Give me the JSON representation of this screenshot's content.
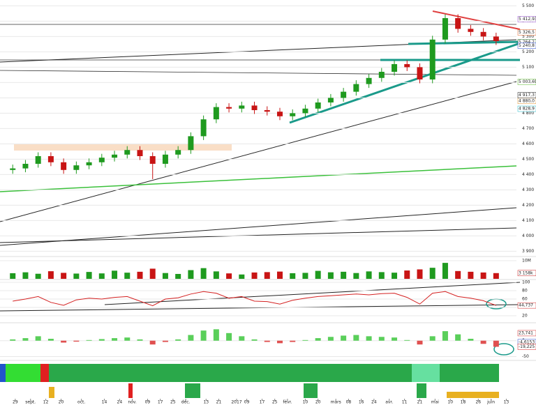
{
  "chart_data": [
    {
      "type": "candlestick",
      "up_color": "#1f9a1f",
      "down_color": "#c81414",
      "x": [
        2,
        7,
        12,
        17,
        22,
        27,
        32,
        37,
        42,
        47,
        52,
        57,
        62,
        67,
        72,
        77,
        82,
        87,
        92,
        97,
        102,
        107,
        112,
        117,
        122,
        127,
        132,
        137,
        142,
        147,
        152,
        157,
        162,
        167,
        172,
        177,
        182,
        187,
        192
      ],
      "open": [
        4430,
        4440,
        4470,
        4520,
        4480,
        4430,
        4460,
        4480,
        4510,
        4530,
        4560,
        4520,
        4470,
        4530,
        4560,
        4650,
        4760,
        4840,
        4830,
        4850,
        4820,
        4810,
        4780,
        4800,
        4830,
        4870,
        4900,
        4940,
        4990,
        5030,
        5070,
        5120,
        5100,
        5020,
        5280,
        5420,
        5350,
        5330,
        5300
      ],
      "high": [
        4465,
        4495,
        4545,
        4545,
        4505,
        4485,
        4505,
        4535,
        4555,
        4585,
        4585,
        4545,
        4555,
        4585,
        4675,
        4785,
        4865,
        4865,
        4875,
        4875,
        4845,
        4835,
        4825,
        4855,
        4895,
        4925,
        4965,
        5015,
        5055,
        5095,
        5145,
        5145,
        5125,
        5305,
        5445,
        5445,
        5375,
        5355,
        5325
      ],
      "low": [
        4405,
        4415,
        4445,
        4455,
        4405,
        4405,
        4435,
        4455,
        4485,
        4505,
        4495,
        4370,
        4445,
        4505,
        4535,
        4625,
        4735,
        4805,
        4805,
        4795,
        4785,
        4755,
        4755,
        4775,
        4805,
        4845,
        4875,
        4915,
        4965,
        5005,
        5045,
        5075,
        4995,
        4995,
        5255,
        5325,
        5305,
        5275,
        5245
      ],
      "close": [
        4440,
        4470,
        4520,
        4480,
        4430,
        4460,
        4480,
        4510,
        4530,
        4560,
        4520,
        4470,
        4530,
        4560,
        4650,
        4760,
        4840,
        4830,
        4850,
        4820,
        4810,
        4780,
        4800,
        4830,
        4870,
        4900,
        4940,
        4990,
        5030,
        5070,
        5120,
        5100,
        5020,
        5280,
        5420,
        5350,
        5330,
        5300,
        5270
      ],
      "xlim": [
        -3,
        200
      ],
      "xticks": [
        {
          "value": 3,
          "label": "29"
        },
        {
          "value": 9,
          "label": "sept."
        },
        {
          "value": 15,
          "label": "12"
        },
        {
          "value": 21,
          "label": "20"
        },
        {
          "value": 29,
          "label": "oct."
        },
        {
          "value": 38,
          "label": "14"
        },
        {
          "value": 44,
          "label": "24"
        },
        {
          "value": 49,
          "label": "nov."
        },
        {
          "value": 55,
          "label": "09"
        },
        {
          "value": 60,
          "label": "17"
        },
        {
          "value": 65,
          "label": "25"
        },
        {
          "value": 70,
          "label": "déc."
        },
        {
          "value": 78,
          "label": "13"
        },
        {
          "value": 83,
          "label": "21"
        },
        {
          "value": 90,
          "label": "2017"
        },
        {
          "value": 94,
          "label": "09"
        },
        {
          "value": 100,
          "label": "17"
        },
        {
          "value": 105,
          "label": "25"
        },
        {
          "value": 110,
          "label": "févr."
        },
        {
          "value": 117,
          "label": "10"
        },
        {
          "value": 122,
          "label": "20"
        },
        {
          "value": 129,
          "label": "mars"
        },
        {
          "value": 134,
          "label": "08"
        },
        {
          "value": 139,
          "label": "16"
        },
        {
          "value": 144,
          "label": "24"
        },
        {
          "value": 150,
          "label": "avr."
        },
        {
          "value": 156,
          "label": "11"
        },
        {
          "value": 162,
          "label": "21"
        },
        {
          "value": 168,
          "label": "mai"
        },
        {
          "value": 174,
          "label": "10"
        },
        {
          "value": 179,
          "label": "18"
        },
        {
          "value": 185,
          "label": "26"
        },
        {
          "value": 190,
          "label": "juin"
        },
        {
          "value": 196,
          "label": "13"
        }
      ],
      "ylim": [
        3870,
        5520
      ],
      "yticks": [
        {
          "value": 3900,
          "label": "3 900"
        },
        {
          "value": 4000,
          "label": "4 000"
        },
        {
          "value": 4100,
          "label": "4 100"
        },
        {
          "value": 4200,
          "label": "4 200"
        },
        {
          "value": 4300,
          "label": "4 300"
        },
        {
          "value": 4400,
          "label": "4 400"
        },
        {
          "value": 4500,
          "label": "4 500"
        },
        {
          "value": 4600,
          "label": "4 600"
        },
        {
          "value": 4700,
          "label": "4 700"
        },
        {
          "value": 4800,
          "label": "4 800"
        },
        {
          "value": 4900,
          "label": "4 900"
        },
        {
          "value": 5000,
          "label": "5 000"
        },
        {
          "value": 5100,
          "label": "5 100"
        },
        {
          "value": 5200,
          "label": "5 200"
        },
        {
          "value": 5300,
          "label": "5 300"
        },
        {
          "value": 5400,
          "label": "5 400"
        },
        {
          "value": 5500,
          "label": "5 500"
        }
      ],
      "price_tags": [
        {
          "value": 5412.93,
          "label": "5 412,93",
          "color": "#8a3fc8"
        },
        {
          "value": 5326.5,
          "label": "5 326,5",
          "color": "#e05a1a"
        },
        {
          "value": 5264.2,
          "label": "5 264,2",
          "color": "#1a6a1a"
        },
        {
          "value": 5240.8,
          "label": "5 240,8",
          "color": "#2244cc"
        },
        {
          "value": 5003.69,
          "label": "5 003,69",
          "color": "#5ab82a"
        },
        {
          "value": 4880,
          "label": "4 880,0",
          "color": "#e08a1a"
        },
        {
          "value": 4917.3,
          "label": "4 917,3",
          "color": "#111111"
        },
        {
          "value": 4828.9,
          "label": "4 828,9",
          "color": "#1ab8c8"
        }
      ]
    },
    {
      "type": "bar",
      "name": "volume",
      "x": [
        2,
        7,
        12,
        17,
        22,
        27,
        32,
        37,
        42,
        47,
        52,
        57,
        62,
        67,
        72,
        77,
        82,
        87,
        92,
        97,
        102,
        107,
        112,
        117,
        122,
        127,
        132,
        137,
        142,
        147,
        152,
        157,
        162,
        167,
        172,
        177,
        182,
        187,
        192
      ],
      "values": [
        3.1,
        3.6,
        2.8,
        4.2,
        3.3,
        2.9,
        3.8,
        3.0,
        4.5,
        3.4,
        3.9,
        5.6,
        3.2,
        2.7,
        4.8,
        5.9,
        4.1,
        3.0,
        2.4,
        3.5,
        3.7,
        4.0,
        3.1,
        3.3,
        4.4,
        3.6,
        3.9,
        3.2,
        4.1,
        3.7,
        3.4,
        4.6,
        5.2,
        6.1,
        8.8,
        4.3,
        3.9,
        3.5,
        3.158
      ],
      "xlim": [
        -3,
        200
      ],
      "ylim": [
        0,
        10
      ],
      "yticks": [
        {
          "value": 10,
          "label": "10M"
        }
      ],
      "tag": {
        "value": 3.158,
        "label": "3 158k"
      }
    },
    {
      "type": "line",
      "name": "RSI",
      "color": "#d42020",
      "x": [
        2,
        7,
        12,
        17,
        22,
        27,
        32,
        37,
        42,
        47,
        52,
        57,
        62,
        67,
        72,
        77,
        82,
        87,
        92,
        97,
        102,
        107,
        112,
        117,
        122,
        127,
        132,
        137,
        142,
        147,
        152,
        157,
        162,
        167,
        172,
        177,
        182,
        187,
        192
      ],
      "values": [
        55,
        60,
        66,
        52,
        45,
        58,
        62,
        60,
        64,
        66,
        55,
        44,
        60,
        63,
        72,
        78,
        74,
        62,
        66,
        55,
        54,
        48,
        57,
        62,
        66,
        68,
        70,
        72,
        70,
        73,
        74,
        64,
        48,
        74,
        78,
        66,
        62,
        56,
        44.737
      ],
      "xlim": [
        -3,
        200
      ],
      "ylim": [
        5,
        105
      ],
      "yticks": [
        20,
        40,
        60,
        80,
        100
      ],
      "tag": {
        "value": 44.737,
        "label": "44,737"
      }
    },
    {
      "type": "bar",
      "name": "MACD",
      "pos_color": "#5acf5a",
      "neg_color": "#e05050",
      "x": [
        2,
        7,
        12,
        17,
        22,
        27,
        32,
        37,
        42,
        47,
        52,
        57,
        62,
        67,
        72,
        77,
        82,
        87,
        92,
        97,
        102,
        107,
        112,
        117,
        122,
        127,
        132,
        137,
        142,
        147,
        152,
        157,
        162,
        167,
        172,
        177,
        182,
        187,
        192
      ],
      "values": [
        4,
        8,
        14,
        6,
        -6,
        -3,
        2,
        5,
        8,
        10,
        4,
        -12,
        -4,
        4,
        18,
        32,
        36,
        24,
        14,
        4,
        -4,
        -8,
        -4,
        2,
        8,
        12,
        16,
        18,
        14,
        12,
        10,
        2,
        -12,
        14,
        30,
        20,
        6,
        -10,
        -19.225
      ],
      "xlim": [
        -3,
        200
      ],
      "ylim": [
        -60,
        50
      ],
      "yticks": [
        0,
        -50
      ],
      "tags": [
        {
          "value": 23.741,
          "label": "23,741",
          "color": "#d42020"
        },
        {
          "value": -4.6153,
          "label": "-4,6153",
          "color": "#2244cc"
        },
        {
          "value": -19.225,
          "label": "-19,225",
          "color": "#d42020"
        }
      ]
    }
  ]
}
